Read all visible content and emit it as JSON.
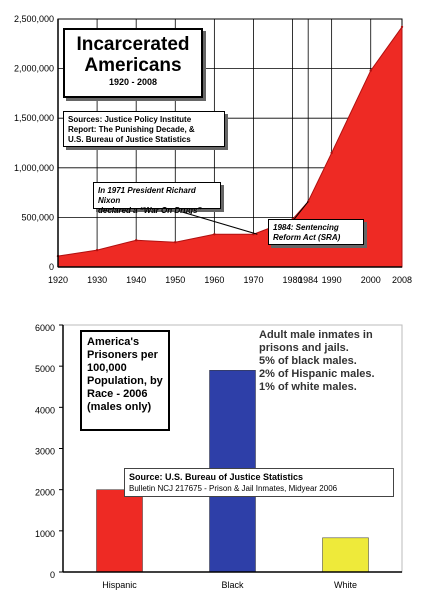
{
  "chart_data": [
    {
      "type": "area",
      "title": "Incarcerated Americans",
      "subtitle": "1920 - 2008",
      "sources": [
        "Sources: Justice Policy Institute",
        "Report: The Punishing Decade, &",
        "U.S. Bureau of Justice Statistics"
      ],
      "x": [
        1920,
        1930,
        1940,
        1950,
        1960,
        1970,
        1980,
        1984,
        1990,
        2000,
        2008
      ],
      "values": [
        110000,
        170000,
        270000,
        250000,
        330000,
        330000,
        480000,
        660000,
        1150000,
        1980000,
        2420000
      ],
      "ylim": [
        0,
        2500000
      ],
      "yticks": [
        "0",
        "500,000",
        "1,000,000",
        "1,500,000",
        "2,000,000",
        "2,500,000"
      ],
      "yticks_values": [
        0,
        500000,
        1000000,
        1500000,
        2000000,
        2500000
      ],
      "xticks": [
        "1920",
        "1930",
        "1940",
        "1950",
        "1960",
        "1970",
        "1980",
        "1984",
        "1990",
        "2000",
        "2008"
      ],
      "grid": true,
      "fill_color": "#ee2a24",
      "annotations": [
        {
          "lines": [
            "In 1971 President Richard Nixon",
            "declared a “War On Drugs”"
          ],
          "x": 1971,
          "y": 330000
        },
        {
          "lines": [
            "1984: Sentencing",
            "Reform Act (SRA)"
          ],
          "x": 1984,
          "y": 660000
        }
      ]
    },
    {
      "type": "bar",
      "title": [
        "America's",
        "Prisoners per",
        "100,000",
        "Population, by",
        "Race - 2006",
        "(males only)"
      ],
      "categories": [
        "Hispanic",
        "Black",
        "White"
      ],
      "values": [
        2000,
        4900,
        830
      ],
      "colors": [
        "#ee2a24",
        "#2e3fa8",
        "#eeea3a"
      ],
      "ylim": [
        0,
        6000
      ],
      "yticks": [
        "0",
        "1000",
        "2000",
        "3000",
        "4000",
        "5000",
        "6000"
      ],
      "yticks_values": [
        0,
        1000,
        2000,
        3000,
        4000,
        5000,
        6000
      ],
      "notes": [
        "Adult male inmates in",
        "prisons and jails.",
        "5% of black males.",
        "2% of Hispanic males.",
        "1% of white males."
      ],
      "source": "Source: U.S. Bureau of Justice Statistics",
      "source_detail": "Bulletin NCJ 217675 - Prison & Jail Inmates, Midyear 2006"
    }
  ]
}
